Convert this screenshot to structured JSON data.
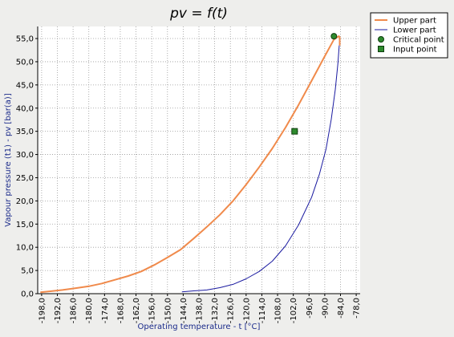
{
  "colors": {
    "background": "#eeeeec",
    "plot_background": "#ffffff",
    "upper_line": "#f08a4b",
    "lower_line": "#1a1aa0",
    "critical_point": "#2e8b2e",
    "input_point": "#2e8b2e",
    "grid": "#9a9a9a",
    "axis_label": "#1a2a8a"
  },
  "chart_data": {
    "type": "line",
    "title": "pv = f(t)",
    "xlabel": "Operating temperature - t [°C]",
    "ylabel": "Vapour pressure (t1) - pv [bar(a)]",
    "xlim": [
      -199.5,
      -76.5
    ],
    "ylim": [
      0,
      57.6
    ],
    "grid": true,
    "legend_position": "top-right outside",
    "x_ticks": [
      "-198,0",
      "-192,0",
      "-186,0",
      "-180,0",
      "-174,0",
      "-168,0",
      "-162,0",
      "-156,0",
      "-150,0",
      "-144,0",
      "-138,0",
      "-132,0",
      "-126,0",
      "-120,0",
      "-114,0",
      "-108,0",
      "-102,0",
      "-96,0",
      "-90,0",
      "-84,0",
      "-78,0"
    ],
    "x_tick_values": [
      -198,
      -192,
      -186,
      -180,
      -174,
      -168,
      -162,
      -156,
      -150,
      -144,
      -138,
      -132,
      -126,
      -120,
      -114,
      -108,
      -102,
      -96,
      -90,
      -84,
      -78
    ],
    "y_ticks": [
      "0,0",
      "5,0",
      "10,0",
      "15,0",
      "20,0",
      "25,0",
      "30,0",
      "35,0",
      "40,0",
      "45,0",
      "50,0",
      "55,0"
    ],
    "y_tick_values": [
      0,
      5,
      10,
      15,
      20,
      25,
      30,
      35,
      40,
      45,
      50,
      55
    ],
    "series": [
      {
        "name": "Upper part",
        "marker": "line",
        "points": [
          [
            -198.5,
            0.3
          ],
          [
            -195,
            0.5
          ],
          [
            -190,
            0.8
          ],
          [
            -185,
            1.2
          ],
          [
            -180,
            1.6
          ],
          [
            -175,
            2.2
          ],
          [
            -170,
            3.0
          ],
          [
            -165,
            3.8
          ],
          [
            -160,
            4.8
          ],
          [
            -155,
            6.2
          ],
          [
            -150,
            7.8
          ],
          [
            -145,
            9.5
          ],
          [
            -140,
            11.9
          ],
          [
            -135,
            14.4
          ],
          [
            -130,
            17.0
          ],
          [
            -125,
            20.0
          ],
          [
            -120,
            23.5
          ],
          [
            -115,
            27.3
          ],
          [
            -110,
            31.3
          ],
          [
            -105,
            35.8
          ],
          [
            -100,
            40.7
          ],
          [
            -95,
            45.9
          ],
          [
            -90,
            51.2
          ],
          [
            -86.5,
            54.8
          ],
          [
            -84.6,
            55.5
          ],
          [
            -84.3,
            55.3
          ],
          [
            -84.3,
            53.5
          ]
        ]
      },
      {
        "name": "Lower part",
        "marker": "line",
        "points": [
          [
            -144.5,
            0.4
          ],
          [
            -140,
            0.6
          ],
          [
            -135,
            0.8
          ],
          [
            -130,
            1.3
          ],
          [
            -125,
            2.0
          ],
          [
            -120,
            3.2
          ],
          [
            -115,
            4.8
          ],
          [
            -110,
            7.0
          ],
          [
            -105,
            10.3
          ],
          [
            -100,
            14.8
          ],
          [
            -95,
            20.8
          ],
          [
            -92,
            25.8
          ],
          [
            -89.5,
            31.2
          ],
          [
            -87.5,
            37.6
          ],
          [
            -86,
            44.0
          ],
          [
            -85,
            49.5
          ],
          [
            -84.5,
            53.5
          ]
        ]
      },
      {
        "name": "Critical point",
        "marker": "circle",
        "points": [
          [
            -86.5,
            55.5
          ]
        ]
      },
      {
        "name": "Input point",
        "marker": "square",
        "points": [
          [
            -101.5,
            35.0
          ]
        ]
      }
    ]
  }
}
